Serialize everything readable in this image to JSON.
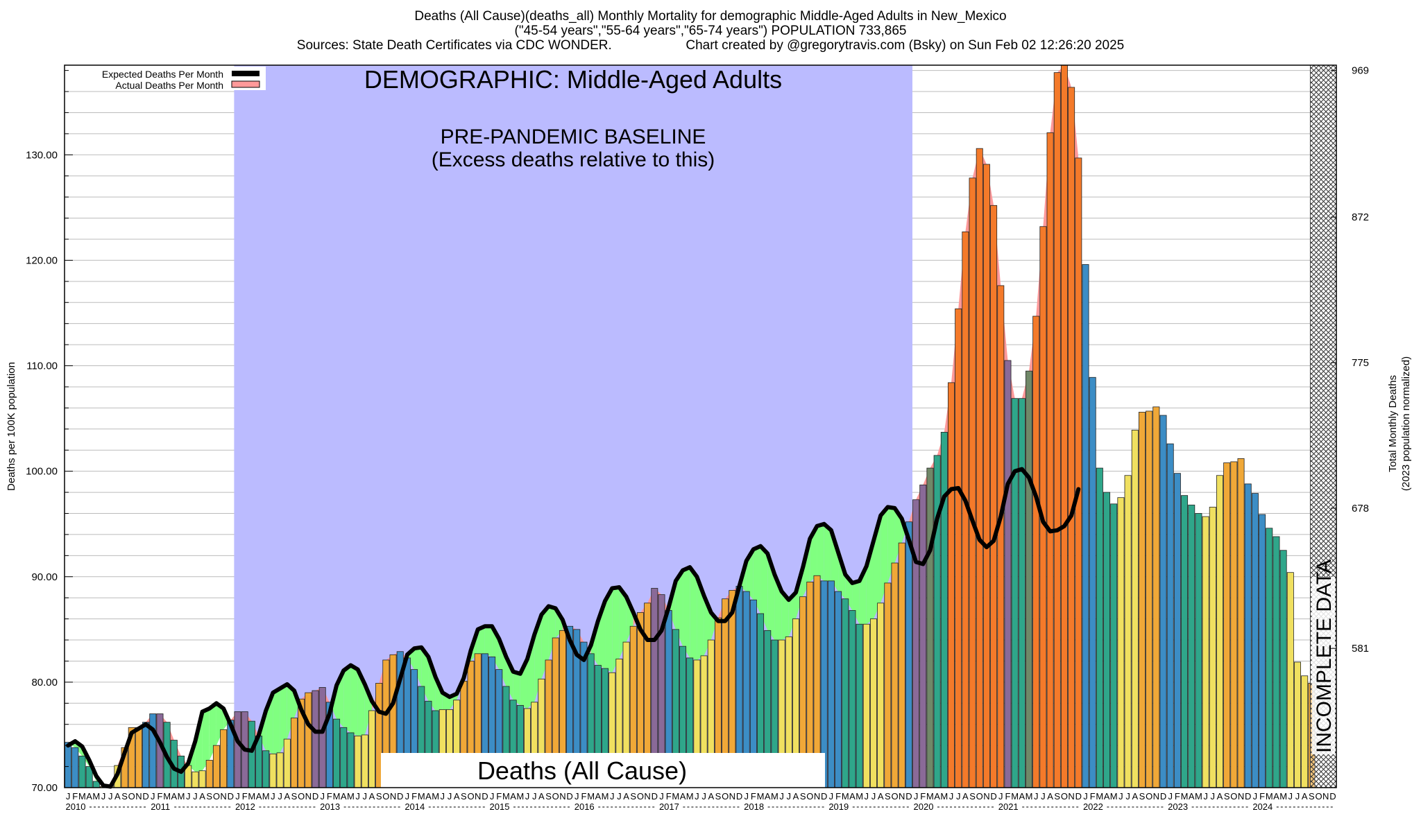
{
  "header": {
    "title": "Deaths (All Cause)(deaths_all) Monthly Mortality for demographic Middle-Aged Adults in New_Mexico",
    "subtitle": "(\"45-54 years\",\"55-64 years\",\"65-74 years\") POPULATION 733,865",
    "sources": "Sources: State Death Certificates via CDC WONDER.",
    "credit": "Chart created by @gregorytravis.com (Bsky) on Sun Feb 02 12:26:20 2025"
  },
  "chart_data": {
    "type": "bar",
    "title": "DEMOGRAPHIC: Middle-Aged Adults",
    "baseline_label_1": "PRE-PANDEMIC BASELINE",
    "baseline_label_2": "(Excess deaths relative to this)",
    "bottom_label": "Deaths (All Cause)",
    "incomplete_label": "INCOMPLETE DATA",
    "ylabel": "Deaths per 100K population",
    "ylabel_right": "Total Monthly Deaths",
    "ylabel_right_2": "(2023 population normalized)",
    "ylim": [
      70,
      138.5
    ],
    "yticks": [
      70,
      80,
      90,
      100,
      110,
      120,
      130
    ],
    "yticks_right": [
      {
        "v": 581,
        "y": 83.2
      },
      {
        "v": 678,
        "y": 96.5
      },
      {
        "v": 775,
        "y": 110.3
      },
      {
        "v": 872,
        "y": 124.1
      },
      {
        "v": 969,
        "y": 138
      }
    ],
    "baseline_period": [
      "2012-01",
      "2019-12"
    ],
    "incomplete_period": [
      "2024-10",
      "2024-12"
    ],
    "month_letters": [
      "J",
      "F",
      "M",
      "A",
      "M",
      "J",
      "J",
      "A",
      "S",
      "O",
      "N",
      "D"
    ],
    "years": [
      2010,
      2011,
      2012,
      2013,
      2014,
      2015,
      2016,
      2017,
      2018,
      2019,
      2020,
      2021,
      2022,
      2023,
      2024
    ],
    "legend": [
      "Expected Deaths Per Month",
      "Actual Deaths Per Month"
    ],
    "colors": {
      "baseline": "#bbbbff",
      "expected_line": "#000000",
      "excess_fill": "#ff9999",
      "deficit_fill": "#80ff80",
      "winter": "#3c8dc5",
      "spring": "#2fa68a",
      "summer": "#f0e060",
      "fall": "#f0a838",
      "excess_high": "#f47a2a",
      "excess_purple": "#8a6a98",
      "excess_olive": "#708868"
    },
    "series": [
      {
        "name": "Actual Deaths Per Month",
        "values": [
          74.3,
          73.8,
          73.0,
          72.0,
          70.6,
          70.1,
          70.2,
          72.1,
          73.8,
          75.7,
          75.7,
          76.2,
          77.0,
          77.0,
          76.2,
          74.5,
          73.0,
          72.1,
          71.5,
          71.6,
          72.6,
          74.0,
          75.5,
          76.4,
          77.2,
          77.2,
          76.3,
          74.9,
          73.5,
          73.2,
          73.3,
          74.6,
          76.6,
          78.4,
          79.0,
          79.2,
          79.5,
          78.1,
          76.5,
          75.7,
          75.2,
          74.9,
          75.0,
          77.3,
          79.9,
          82.1,
          82.6,
          82.9,
          82.3,
          81.2,
          79.6,
          78.2,
          77.3,
          77.4,
          77.4,
          78.3,
          80.1,
          82.0,
          82.7,
          82.7,
          82.4,
          81.2,
          79.6,
          78.3,
          77.8,
          77.5,
          78.1,
          80.3,
          82.1,
          84.2,
          84.9,
          85.3,
          85.0,
          83.8,
          82.7,
          81.6,
          81.3,
          80.9,
          82.2,
          83.8,
          85.3,
          86.6,
          87.5,
          88.9,
          88.3,
          86.8,
          85.0,
          83.4,
          82.3,
          82.1,
          82.5,
          84.0,
          86.1,
          87.9,
          88.7,
          89.1,
          88.6,
          87.8,
          86.5,
          84.9,
          84.0,
          84.0,
          84.3,
          86.0,
          88.1,
          89.5,
          90.1,
          89.6,
          89.6,
          88.6,
          87.9,
          86.8,
          85.5,
          85.5,
          86.0,
          87.5,
          89.4,
          91.3,
          93.2,
          95.2,
          97.3,
          98.7,
          100.3,
          101.5,
          103.7,
          108.4,
          115.4,
          122.7,
          127.8,
          130.6,
          129.1,
          125.2,
          117.6,
          110.5,
          106.9,
          106.9,
          109.5,
          114.7,
          123.2,
          132.1,
          137.8,
          138.5,
          136.4,
          129.7,
          119.6,
          108.9,
          100.3,
          98.0,
          96.9,
          97.5,
          99.6,
          103.9,
          105.6,
          105.7,
          106.1,
          105.3,
          102.6,
          99.8,
          97.7,
          96.8,
          96.0,
          95.7,
          96.6,
          99.6,
          100.8,
          100.9,
          101.2,
          98.8,
          97.9,
          95.9,
          94.6,
          93.8,
          92.5,
          90.4,
          81.9,
          80.6,
          79.9,
          null,
          null,
          null
        ]
      },
      {
        "name": "Expected Deaths Per Month",
        "values": [
          74.0,
          74.4,
          73.9,
          72.6,
          71.1,
          70.2,
          70.1,
          71.3,
          73.3,
          75.2,
          75.6,
          76.0,
          75.5,
          74.3,
          72.9,
          71.8,
          71.5,
          72.3,
          74.4,
          77.2,
          77.5,
          78.0,
          77.5,
          76.0,
          74.4,
          73.6,
          73.5,
          75.0,
          77.3,
          79.0,
          79.4,
          79.8,
          79.2,
          77.4,
          76.0,
          75.3,
          75.3,
          77.0,
          79.7,
          81.1,
          81.6,
          81.2,
          79.8,
          78.2,
          77.2,
          77.0,
          78.0,
          80.3,
          82.6,
          83.2,
          83.3,
          82.4,
          80.5,
          79.0,
          78.6,
          78.9,
          80.4,
          83.0,
          85.0,
          85.3,
          85.3,
          84.1,
          82.4,
          81.0,
          80.8,
          82.2,
          84.5,
          86.4,
          87.2,
          87.0,
          85.9,
          84.0,
          82.6,
          82.1,
          83.5,
          85.8,
          87.7,
          88.9,
          89.0,
          88.1,
          86.6,
          85.0,
          84.0,
          84.0,
          84.9,
          87.1,
          89.6,
          90.6,
          90.9,
          90.0,
          88.2,
          86.6,
          85.8,
          85.8,
          86.6,
          89.1,
          91.5,
          92.6,
          92.9,
          92.2,
          90.2,
          88.6,
          87.8,
          88.5,
          90.9,
          93.6,
          94.8,
          95.0,
          94.4,
          92.3,
          90.2,
          89.4,
          89.6,
          91.0,
          93.4,
          95.8,
          96.6,
          96.5,
          95.5,
          93.5,
          91.4,
          91.2,
          92.5,
          95.5,
          97.6,
          98.3,
          98.4,
          97.2,
          95.3,
          93.5,
          92.8,
          93.4,
          95.7,
          98.8,
          100.0,
          100.2,
          99.4,
          97.6,
          95.2,
          94.3,
          94.4,
          94.8,
          95.8,
          98.3
        ]
      }
    ]
  }
}
